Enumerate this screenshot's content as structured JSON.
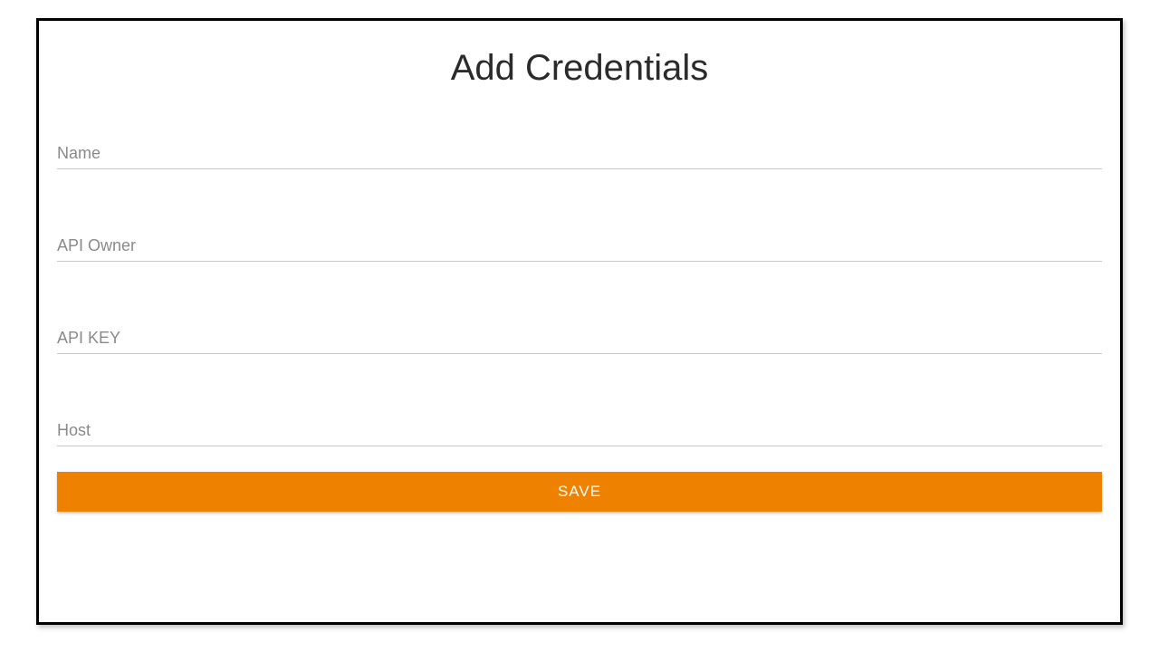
{
  "title": "Add Credentials",
  "fields": {
    "name": {
      "placeholder": "Name",
      "value": ""
    },
    "api_owner": {
      "placeholder": "API Owner",
      "value": ""
    },
    "api_key": {
      "placeholder": "API KEY",
      "value": ""
    },
    "host": {
      "placeholder": "Host",
      "value": ""
    }
  },
  "button": {
    "save_label": "SAVE"
  },
  "colors": {
    "accent": "#ee8100",
    "border": "#000000",
    "input_underline": "#c8c8c8",
    "placeholder": "#8a8a8a",
    "button_text": "#ffffff",
    "background": "#ffffff",
    "title_text": "#2b2b2b"
  },
  "typography": {
    "title_fontsize": 40,
    "input_fontsize": 18,
    "button_fontsize": 17,
    "font_family": "Segoe UI"
  },
  "layout": {
    "container_width": 1200,
    "container_height": 670,
    "container_border_width": 3,
    "field_gap": 68,
    "button_height": 42
  }
}
